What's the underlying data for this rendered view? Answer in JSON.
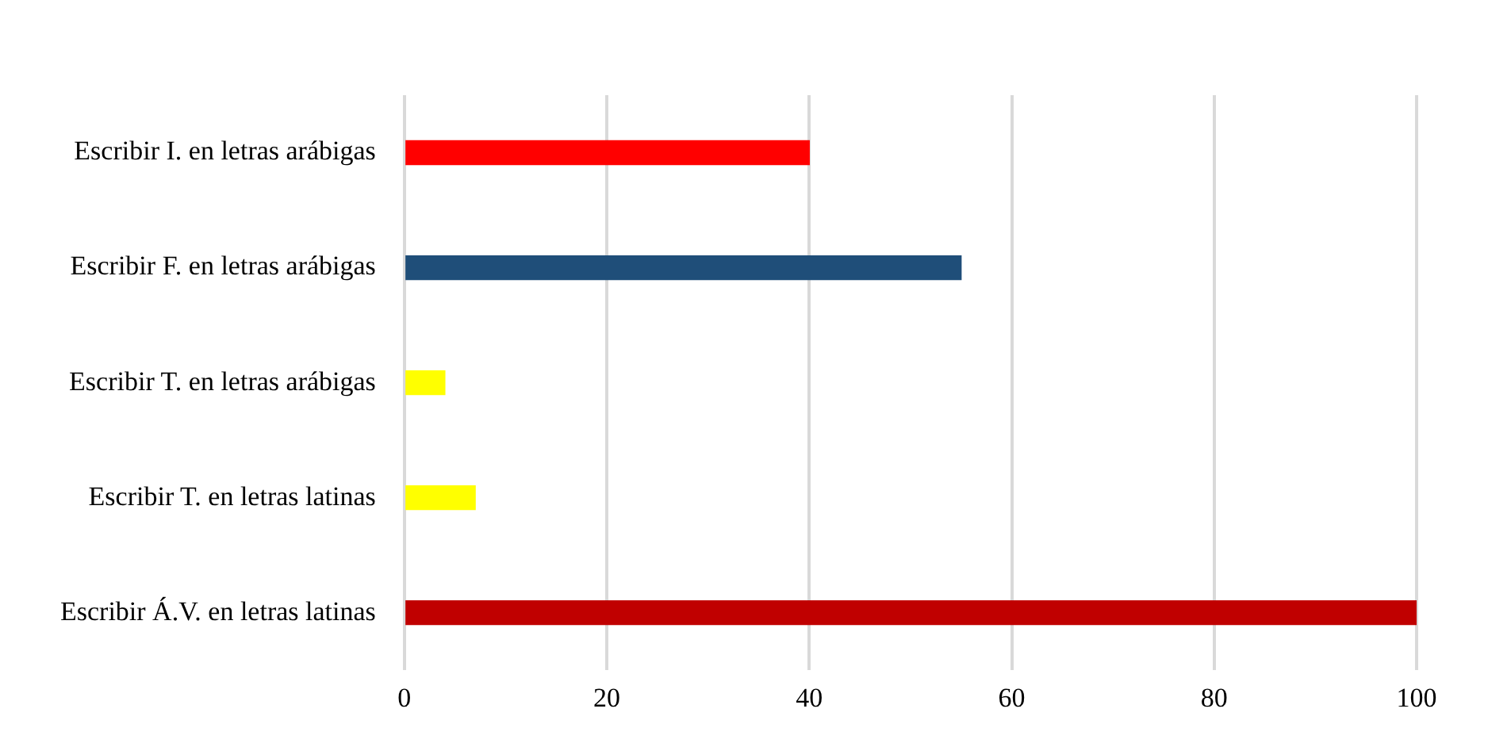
{
  "chart_data": {
    "type": "bar",
    "orientation": "horizontal",
    "categories": [
      "Escribir I. en letras arábigas",
      "Escribir F. en letras arábigas",
      "Escribir T. en letras arábigas",
      "Escribir T. en letras latinas",
      "Escribir Á.V. en letras latinas"
    ],
    "values": [
      40,
      55,
      4,
      7,
      100
    ],
    "colors": [
      "#ff0000",
      "#1f4e79",
      "#ffff00",
      "#ffff00",
      "#c00000"
    ],
    "xlim": [
      0,
      100
    ],
    "xticks": [
      0,
      20,
      40,
      60,
      80,
      100
    ],
    "grid": "x",
    "legend": false
  }
}
